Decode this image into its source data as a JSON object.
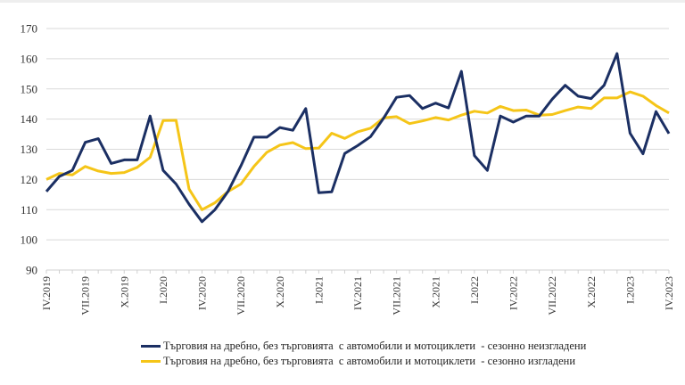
{
  "chart_data": {
    "type": "line",
    "title": "",
    "xlabel": "",
    "ylabel": "",
    "ylim": [
      90,
      170
    ],
    "yticks": [
      90,
      100,
      110,
      120,
      130,
      140,
      150,
      160,
      170
    ],
    "grid": true,
    "legend_position": "bottom",
    "x": [
      "IV.2019",
      "V.2019",
      "VI.2019",
      "VII.2019",
      "VIII.2019",
      "IX.2019",
      "X.2019",
      "XI.2019",
      "XII.2019",
      "I.2020",
      "II.2020",
      "III.2020",
      "IV.2020",
      "V.2020",
      "VI.2020",
      "VII.2020",
      "VIII.2020",
      "IX.2020",
      "X.2020",
      "XI.2020",
      "XII.2020",
      "I.2021",
      "II.2021",
      "III.2021",
      "IV.2021",
      "V.2021",
      "VI.2021",
      "VII.2021",
      "VIII.2021",
      "IX.2021",
      "X.2021",
      "XI.2021",
      "XII.2021",
      "I.2022",
      "II.2022",
      "III.2022",
      "IV.2022",
      "V.2022",
      "VI.2022",
      "VII.2022",
      "VIII.2022",
      "IX.2022",
      "X.2022",
      "XI.2022",
      "XII.2022",
      "I.2023",
      "II.2023",
      "III.2023",
      "IV.2023"
    ],
    "xtick_labels": [
      "IV.2019",
      "VII.2019",
      "X.2019",
      "I.2020",
      "IV.2020",
      "VII.2020",
      "X.2020",
      "I.2021",
      "IV.2021",
      "VII.2021",
      "X.2021",
      "I.2022",
      "IV.2022",
      "VII.2022",
      "X.2022",
      "I.2023",
      "IV.2023"
    ],
    "series": [
      {
        "name": "Търговия на дребно, без търговията  с автомобили и мотоциклети  - сезонно неизгладени",
        "color": "#1b2f63",
        "values": [
          116,
          121,
          123,
          132.3,
          133.5,
          125.3,
          126.5,
          126.5,
          141,
          123,
          118.5,
          111.8,
          106,
          110,
          116,
          124.5,
          134,
          134,
          137.2,
          136.3,
          143.5,
          115.6,
          115.9,
          128.6,
          131.2,
          134.2,
          140.3,
          147.2,
          147.8,
          143.5,
          145.3,
          143.7,
          155.8,
          127.9,
          123,
          141,
          139,
          141,
          141,
          146.6,
          151.2,
          147.6,
          146.8,
          151.2,
          161.7,
          135.3,
          128.5,
          142.5,
          135.2
        ]
      },
      {
        "name": "Търговия на дребно, без търговията  с автомобили и мотоциклети  - сезонно изгладени",
        "color": "#f5c518",
        "values": [
          120,
          122,
          121.5,
          124.3,
          122.8,
          122,
          122.3,
          124,
          127.3,
          139.5,
          139.6,
          116.8,
          110,
          112.3,
          116,
          118.5,
          124.3,
          129,
          131.4,
          132.2,
          130.2,
          130.4,
          135.3,
          133.6,
          135.8,
          137,
          140.4,
          140.8,
          138.5,
          139.4,
          140.5,
          139.7,
          141.3,
          142.6,
          142,
          144.2,
          142.8,
          143,
          141.3,
          141.5,
          142.8,
          144,
          143.5,
          147,
          147,
          149,
          147.6,
          144.5,
          142
        ]
      }
    ]
  }
}
